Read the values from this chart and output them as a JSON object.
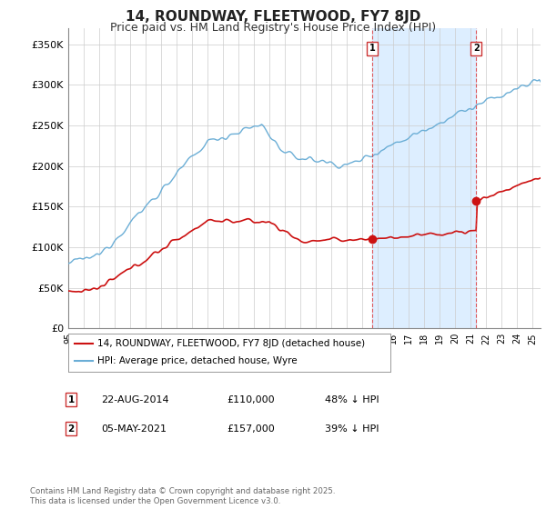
{
  "title": "14, ROUNDWAY, FLEETWOOD, FY7 8JD",
  "subtitle": "Price paid vs. HM Land Registry's House Price Index (HPI)",
  "ylim": [
    0,
    370000
  ],
  "yticks": [
    0,
    50000,
    100000,
    150000,
    200000,
    250000,
    300000,
    350000
  ],
  "ytick_labels": [
    "£0",
    "£50K",
    "£100K",
    "£150K",
    "£200K",
    "£250K",
    "£300K",
    "£350K"
  ],
  "x_start_year": 1995,
  "x_end_year": 2025.5,
  "marker1_year": 2014.64,
  "marker1_value": 110000,
  "marker2_year": 2021.34,
  "marker2_value": 157000,
  "hpi_color": "#6baed6",
  "property_color": "#cc1111",
  "grid_color": "#cccccc",
  "shade_color": "#ddeeff",
  "background_color": "#ffffff",
  "legend_label_property": "14, ROUNDWAY, FLEETWOOD, FY7 8JD (detached house)",
  "legend_label_hpi": "HPI: Average price, detached house, Wyre",
  "table_rows": [
    {
      "num": "1",
      "date": "22-AUG-2014",
      "price": "£110,000",
      "note": "48% ↓ HPI"
    },
    {
      "num": "2",
      "date": "05-MAY-2021",
      "price": "£157,000",
      "note": "39% ↓ HPI"
    }
  ],
  "footnote": "Contains HM Land Registry data © Crown copyright and database right 2025.\nThis data is licensed under the Open Government Licence v3.0."
}
